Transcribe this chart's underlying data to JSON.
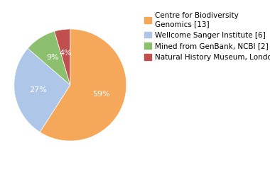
{
  "labels": [
    "Centre for Biodiversity\nGenomics [13]",
    "Wellcome Sanger Institute [6]",
    "Mined from GenBank, NCBI [2]",
    "Natural History Museum, London [1]"
  ],
  "values": [
    13,
    6,
    2,
    1
  ],
  "percentages": [
    "59%",
    "27%",
    "9%",
    "4%"
  ],
  "colors": [
    "#f5a85a",
    "#aec6e8",
    "#8dc06e",
    "#c0504d"
  ],
  "startangle": 90,
  "background_color": "#ffffff",
  "text_color": "#ffffff",
  "font_size": 8,
  "legend_font_size": 7.5
}
